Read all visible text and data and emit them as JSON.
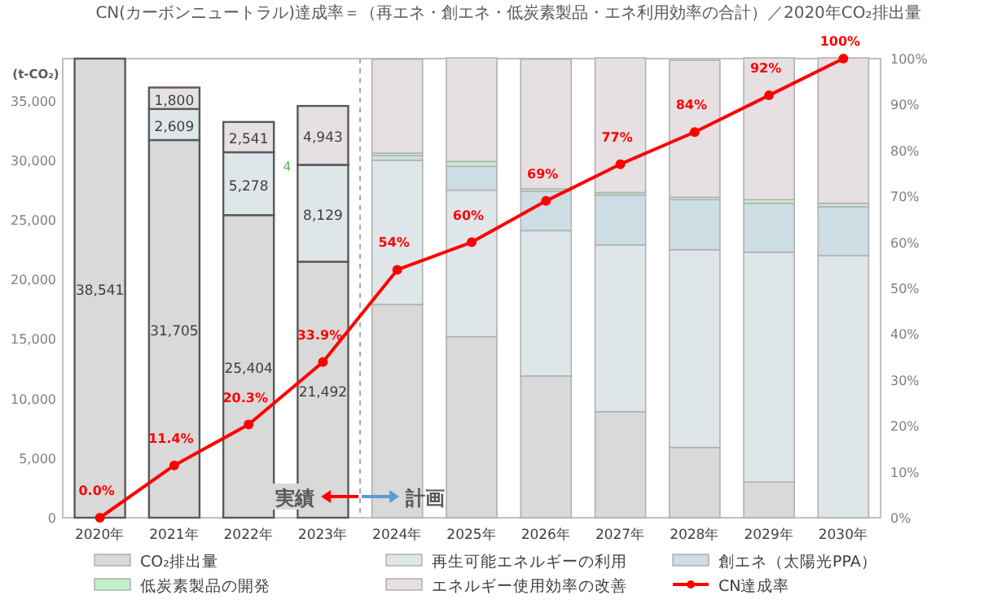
{
  "chart_data": {
    "type": "bar",
    "stacked": true,
    "title": "CN(カーボンニュートラル)達成率＝（再エネ・創エネ・低炭素製品・エネ利用効率の合計）／2020年CO₂排出量",
    "ylabel": "(t-CO₂)",
    "categories": [
      "2020年",
      "2021年",
      "2022年",
      "2023年",
      "2024年",
      "2025年",
      "2026年",
      "2027年",
      "2028年",
      "2029年",
      "2030年"
    ],
    "series": [
      {
        "name": "CO₂排出量",
        "color": "#d9d9d9",
        "values": [
          38541,
          31705,
          25404,
          21492,
          17900,
          15200,
          11900,
          8900,
          5900,
          3000,
          0
        ],
        "value_labels": [
          "38,541",
          "31,705",
          "25,404",
          "21,492",
          null,
          null,
          null,
          null,
          null,
          null,
          null
        ]
      },
      {
        "name": "再生可能エネルギーの利用",
        "color": "#dfe6ea",
        "values": [
          null,
          2609,
          5278,
          8129,
          12100,
          12300,
          12200,
          14000,
          16600,
          19300,
          22000
        ],
        "value_labels": [
          null,
          "2,609",
          "5,278",
          "8,129",
          null,
          null,
          null,
          null,
          null,
          null,
          null
        ]
      },
      {
        "name": "創エネ（太陽光PPA）",
        "color": "#cddde4",
        "values": [
          null,
          null,
          null,
          null,
          400,
          2000,
          3300,
          4200,
          4200,
          4100,
          4100
        ]
      },
      {
        "name": "低炭素製品の開発",
        "color": "#c6efce",
        "values": [
          null,
          null,
          null,
          4,
          200,
          400,
          200,
          200,
          200,
          300,
          300
        ],
        "value_labels": [
          null,
          null,
          null,
          "4",
          null,
          null,
          null,
          null,
          null,
          null,
          null
        ]
      },
      {
        "name": "エネルギー使用効率の改善",
        "color": "#e6e0e3",
        "values": [
          null,
          1800,
          2541,
          4943,
          7900,
          8700,
          10900,
          11300,
          11500,
          11900,
          12200
        ],
        "value_labels": [
          null,
          "1,800",
          "2,541",
          "4,943",
          null,
          null,
          null,
          null,
          null,
          null,
          null
        ]
      },
      {
        "name": "CN達成率",
        "type": "line",
        "axis": "y2",
        "color": "#ff0000",
        "marker": "circle",
        "values": [
          0,
          11.4,
          20.3,
          33.9,
          54,
          60,
          69,
          77,
          84,
          92,
          100
        ],
        "value_labels": [
          "0.0%",
          "11.4%",
          "20.3%",
          "33.9%",
          "54%",
          "60%",
          "69%",
          "77%",
          "84%",
          "92%",
          "100%"
        ]
      }
    ],
    "ylim": [
      0,
      38541
    ],
    "yticks": [
      0,
      {
        "value": 5000,
        "label": "5,000"
      },
      {
        "value": 10000,
        "label": "10,000"
      },
      {
        "value": 15000,
        "label": "15,000"
      },
      {
        "value": 20000,
        "label": "20,000"
      },
      {
        "value": 25000,
        "label": "25,000"
      },
      {
        "value": 30000,
        "label": "30,000"
      },
      {
        "value": 35000,
        "label": "35,000"
      }
    ],
    "y2lim": [
      0,
      100
    ],
    "y2ticks": [
      {
        "value": 0,
        "label": "0%"
      },
      {
        "value": 10,
        "label": "10%"
      },
      {
        "value": 20,
        "label": "20%"
      },
      {
        "value": 30,
        "label": "30%"
      },
      {
        "value": 40,
        "label": "40%"
      },
      {
        "value": 50,
        "label": "50%"
      },
      {
        "value": 60,
        "label": "60%"
      },
      {
        "value": 70,
        "label": "70%"
      },
      {
        "value": 80,
        "label": "80%"
      },
      {
        "value": 90,
        "label": "90%"
      },
      {
        "value": 100,
        "label": "100%"
      }
    ],
    "annotations": [
      "実績",
      "計画"
    ],
    "legend": "bottom",
    "grid": false
  }
}
